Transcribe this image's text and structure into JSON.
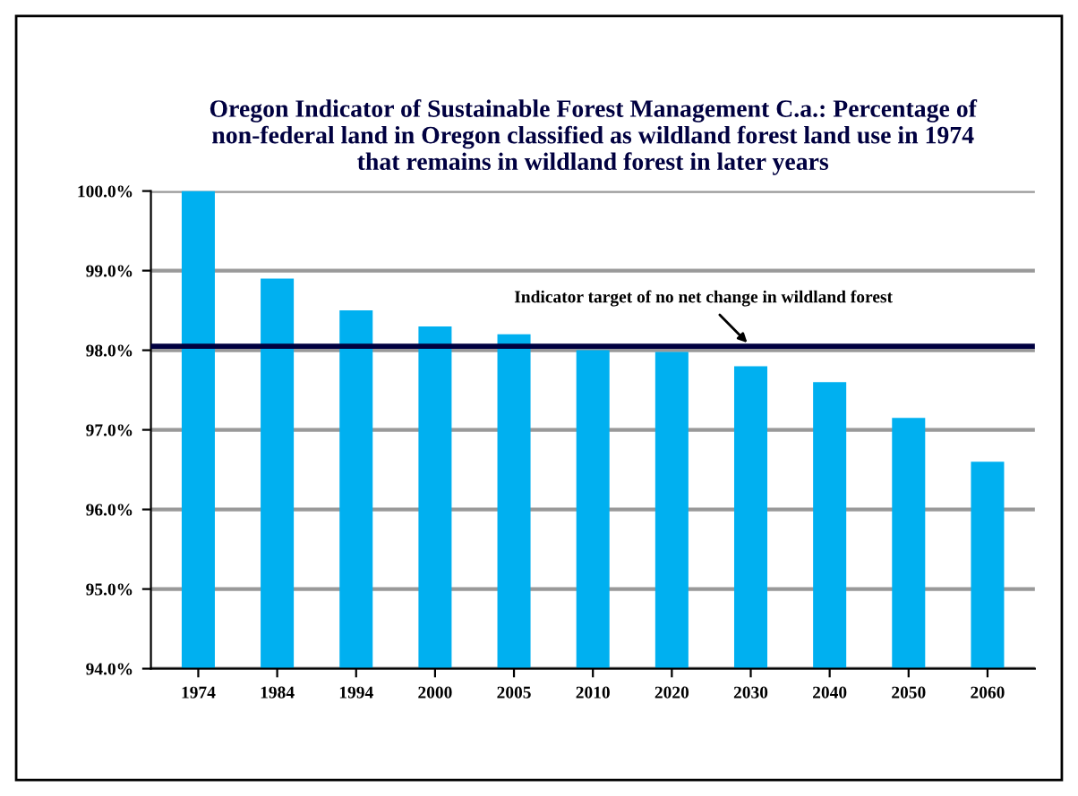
{
  "chart_data": {
    "type": "bar",
    "title": "Oregon Indicator of Sustainable Forest Management C.a.: Percentage of\nnon-federal land in Oregon classified as wildland forest land use in 1974\nthat remains in wildland forest in later years",
    "categories": [
      "1974",
      "1984",
      "1994",
      "2000",
      "2005",
      "2010",
      "2020",
      "2030",
      "2040",
      "2050",
      "2060"
    ],
    "values": [
      100.0,
      98.9,
      98.5,
      98.3,
      98.2,
      98.0,
      97.98,
      97.8,
      97.6,
      97.15,
      96.6
    ],
    "color": "#00b0f0",
    "ylim": [
      94.0,
      100.0
    ],
    "yticks": [
      {
        "value": 94,
        "label": "94.0%"
      },
      {
        "value": 95,
        "label": "95.0%"
      },
      {
        "value": 96,
        "label": "96.0%"
      },
      {
        "value": 97,
        "label": "97.0%"
      },
      {
        "value": 98,
        "label": "98.0%"
      },
      {
        "value": 99,
        "label": "99.0%"
      },
      {
        "value": 100,
        "label": "100.0%"
      }
    ],
    "grid": "y",
    "ref_lines": [
      {
        "axis": "y",
        "value": 98.05,
        "color": "#000040"
      }
    ],
    "annotations": [
      {
        "text": "Indicator target of no net change in wildland forest",
        "x": "2030",
        "y": 98.05
      }
    ]
  }
}
